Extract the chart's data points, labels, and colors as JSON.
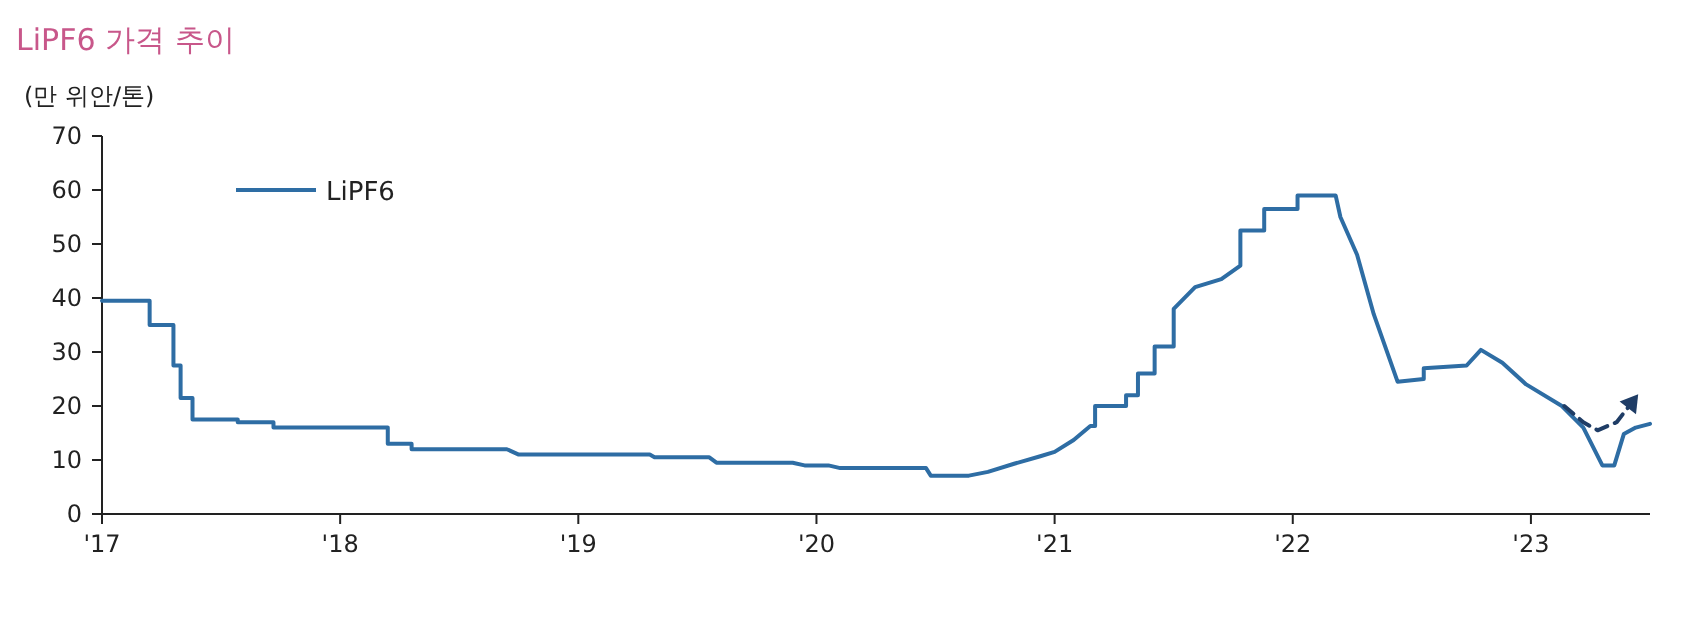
{
  "chart_data": {
    "type": "line",
    "title": "LiPF6 가격 추이",
    "ylabel": "(만 위안/톤)",
    "xlim": [
      2017,
      2023.5
    ],
    "xticks": [
      {
        "value": 2017,
        "label": "'17"
      },
      {
        "value": 2018,
        "label": "'18"
      },
      {
        "value": 2019,
        "label": "'19"
      },
      {
        "value": 2020,
        "label": "'20"
      },
      {
        "value": 2021,
        "label": "'21"
      },
      {
        "value": 2022,
        "label": "'22"
      },
      {
        "value": 2023,
        "label": "'23"
      }
    ],
    "ylim": [
      0,
      70
    ],
    "yticks": [
      0,
      10,
      20,
      30,
      40,
      50,
      60,
      70
    ],
    "grid": false,
    "legend": "top left",
    "series": [
      {
        "name": "LiPF6",
        "color": "#2e6da4",
        "line_style": "solid",
        "x": [
          2017,
          2017.2,
          2017.2,
          2017.3,
          2017.3,
          2017.33,
          2017.33,
          2017.38,
          2017.38,
          2017.57,
          2017.57,
          2017.72,
          2017.72,
          2018.2,
          2018.2,
          2018.3,
          2018.3,
          2018.7,
          2018.75,
          2019.3,
          2019.32,
          2019.55,
          2019.58,
          2019.9,
          2019.95,
          2020.05,
          2020.1,
          2020.46,
          2020.48,
          2020.64,
          2020.72,
          2020.83,
          2020.94,
          2021.0,
          2021.08,
          2021.15,
          2021.17,
          2021.17,
          2021.3,
          2021.3,
          2021.35,
          2021.35,
          2021.42,
          2021.42,
          2021.5,
          2021.5,
          2021.59,
          2021.7,
          2021.78,
          2021.78,
          2021.88,
          2021.88,
          2022.02,
          2022.02,
          2022.18,
          2022.2,
          2022.27,
          2022.34,
          2022.44,
          2022.55,
          2022.55,
          2022.73,
          2022.79,
          2022.88,
          2022.98,
          2023.13,
          2023.22,
          2023.3,
          2023.35,
          2023.39,
          2023.44,
          2023.5
        ],
        "values": [
          39.5,
          39.5,
          35,
          35,
          27.5,
          27.5,
          21.5,
          21.5,
          17.5,
          17.5,
          17,
          17,
          16,
          16,
          13,
          13,
          12,
          12,
          11,
          11,
          10.5,
          10.5,
          9.5,
          9.5,
          9,
          9,
          8.5,
          8.5,
          7.1,
          7.1,
          7.8,
          9.3,
          10.7,
          11.5,
          13.7,
          16.3,
          16.3,
          20,
          20,
          22,
          22,
          26,
          26,
          31,
          31,
          38,
          42,
          43.5,
          46,
          52.5,
          52.5,
          56.5,
          56.5,
          59,
          59,
          55,
          48,
          37,
          24.5,
          25,
          27,
          27.5,
          30.4,
          28,
          24,
          20,
          16,
          9,
          9,
          14.8,
          16,
          16.7
        ]
      },
      {
        "color": "#1f3d66",
        "line_style": "dashed",
        "x": [
          2023.14,
          2023.22,
          2023.28,
          2023.36,
          2023.43
        ],
        "values": [
          20,
          17,
          15.5,
          17,
          21
        ]
      }
    ]
  }
}
